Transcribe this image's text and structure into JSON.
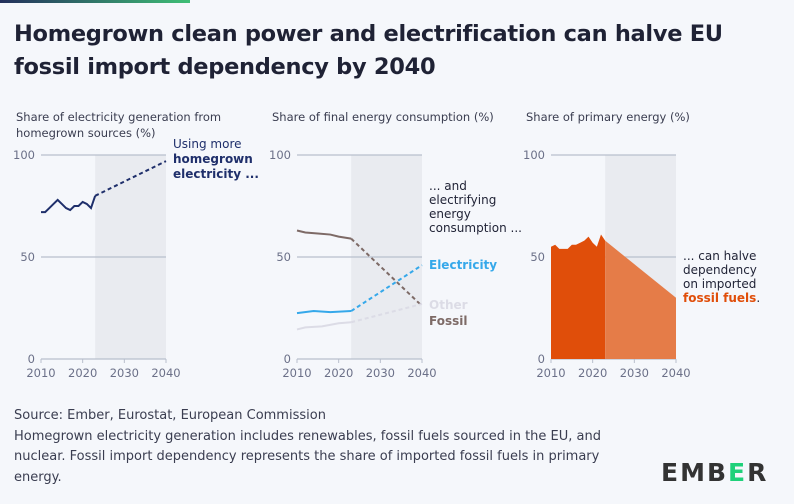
{
  "title": "Homegrown clean power and electrification can halve EU fossil import dependency by 2040",
  "footer": {
    "source": "Source: Ember, Eurostat, European Commission",
    "note": "Homegrown electricity generation includes renewables, fossil fuels sourced in the EU, and nuclear. Fossil import dependency represents the share of imported fossil fuels in primary energy."
  },
  "logo": {
    "text": "EMBER",
    "highlight_letter": "E",
    "highlight_color": "#1fd17a"
  },
  "chart_data": [
    {
      "type": "line",
      "ylabel_lines": [
        "Share of electricity generation from",
        "homegrown sources (%)"
      ],
      "xlim": [
        2010,
        2040
      ],
      "ylim": [
        0,
        100
      ],
      "xticks": [
        "2010",
        "2020",
        "2030",
        "2040"
      ],
      "yticks": [
        "0",
        "50",
        "100"
      ],
      "projection_start": 2023,
      "annotation": {
        "lines": [
          "Using more"
        ],
        "bold_lines": [
          "homegrown",
          "electricity ..."
        ],
        "color": "#1f2f6b"
      },
      "series": [
        {
          "color": "#1f2f6b",
          "historical": [
            [
              2010,
              72
            ],
            [
              2011,
              72
            ],
            [
              2012,
              74
            ],
            [
              2013,
              76
            ],
            [
              2014,
              78
            ],
            [
              2015,
              76
            ],
            [
              2016,
              74
            ],
            [
              2017,
              73
            ],
            [
              2018,
              75
            ],
            [
              2019,
              75
            ],
            [
              2020,
              77
            ],
            [
              2021,
              76
            ],
            [
              2022,
              74
            ],
            [
              2023,
              80
            ]
          ],
          "projection": [
            [
              2023,
              80
            ],
            [
              2040,
              97
            ]
          ]
        }
      ]
    },
    {
      "type": "line",
      "ylabel_lines": [
        "Share of final energy consumption (%)"
      ],
      "xlim": [
        2010,
        2040
      ],
      "ylim": [
        0,
        100
      ],
      "xticks": [
        "2010",
        "2020",
        "2030",
        "2040"
      ],
      "yticks": [
        "0",
        "50",
        "100"
      ],
      "projection_start": 2023,
      "annotation": {
        "lines": [
          "... and",
          "electrifying",
          "energy",
          "consumption ..."
        ],
        "bold_lines": [],
        "color": "#1f2235"
      },
      "series": [
        {
          "name": "Fossil",
          "color": "#7d6a66",
          "historical": [
            [
              2010,
              63
            ],
            [
              2012,
              62
            ],
            [
              2015,
              61.5
            ],
            [
              2018,
              61
            ],
            [
              2020,
              60
            ],
            [
              2023,
              59
            ]
          ],
          "projection": [
            [
              2023,
              59
            ],
            [
              2040,
              26
            ]
          ]
        },
        {
          "name": "Electricity",
          "color": "#35a8ea",
          "historical": [
            [
              2010,
              22.5
            ],
            [
              2014,
              23.5
            ],
            [
              2018,
              23
            ],
            [
              2023,
              23.5
            ]
          ],
          "projection": [
            [
              2023,
              23.5
            ],
            [
              2040,
              46
            ]
          ]
        },
        {
          "name": "Other",
          "color": "#dcdce6",
          "historical": [
            [
              2010,
              14.5
            ],
            [
              2012,
              15.5
            ],
            [
              2016,
              16
            ],
            [
              2020,
              17.5
            ],
            [
              2023,
              18
            ]
          ],
          "projection": [
            [
              2023,
              18
            ],
            [
              2040,
              27
            ]
          ]
        }
      ]
    },
    {
      "type": "area",
      "ylabel_lines": [
        "Share of primary energy (%)"
      ],
      "xlim": [
        2010,
        2040
      ],
      "ylim": [
        0,
        100
      ],
      "xticks": [
        "2010",
        "2020",
        "2030",
        "2040"
      ],
      "yticks": [
        "0",
        "50",
        "100"
      ],
      "projection_start": 2023,
      "annotation": {
        "lines": [
          "... can halve",
          "dependency",
          "on imported"
        ],
        "bold_lines": [
          "fossil fuels"
        ],
        "suffix": ".",
        "color": "#1f2235",
        "bold_color": "#e04e0a"
      },
      "series": [
        {
          "color": "#e04e0a",
          "projection_color": "#e57c48",
          "historical": [
            [
              2010,
              55
            ],
            [
              2011,
              56
            ],
            [
              2012,
              54
            ],
            [
              2013,
              54
            ],
            [
              2014,
              54
            ],
            [
              2015,
              56
            ],
            [
              2016,
              56
            ],
            [
              2017,
              57
            ],
            [
              2018,
              58
            ],
            [
              2019,
              60
            ],
            [
              2020,
              57
            ],
            [
              2021,
              55
            ],
            [
              2022,
              61
            ],
            [
              2023,
              58
            ]
          ],
          "projection": [
            [
              2023,
              58
            ],
            [
              2040,
              30
            ]
          ]
        }
      ]
    }
  ]
}
